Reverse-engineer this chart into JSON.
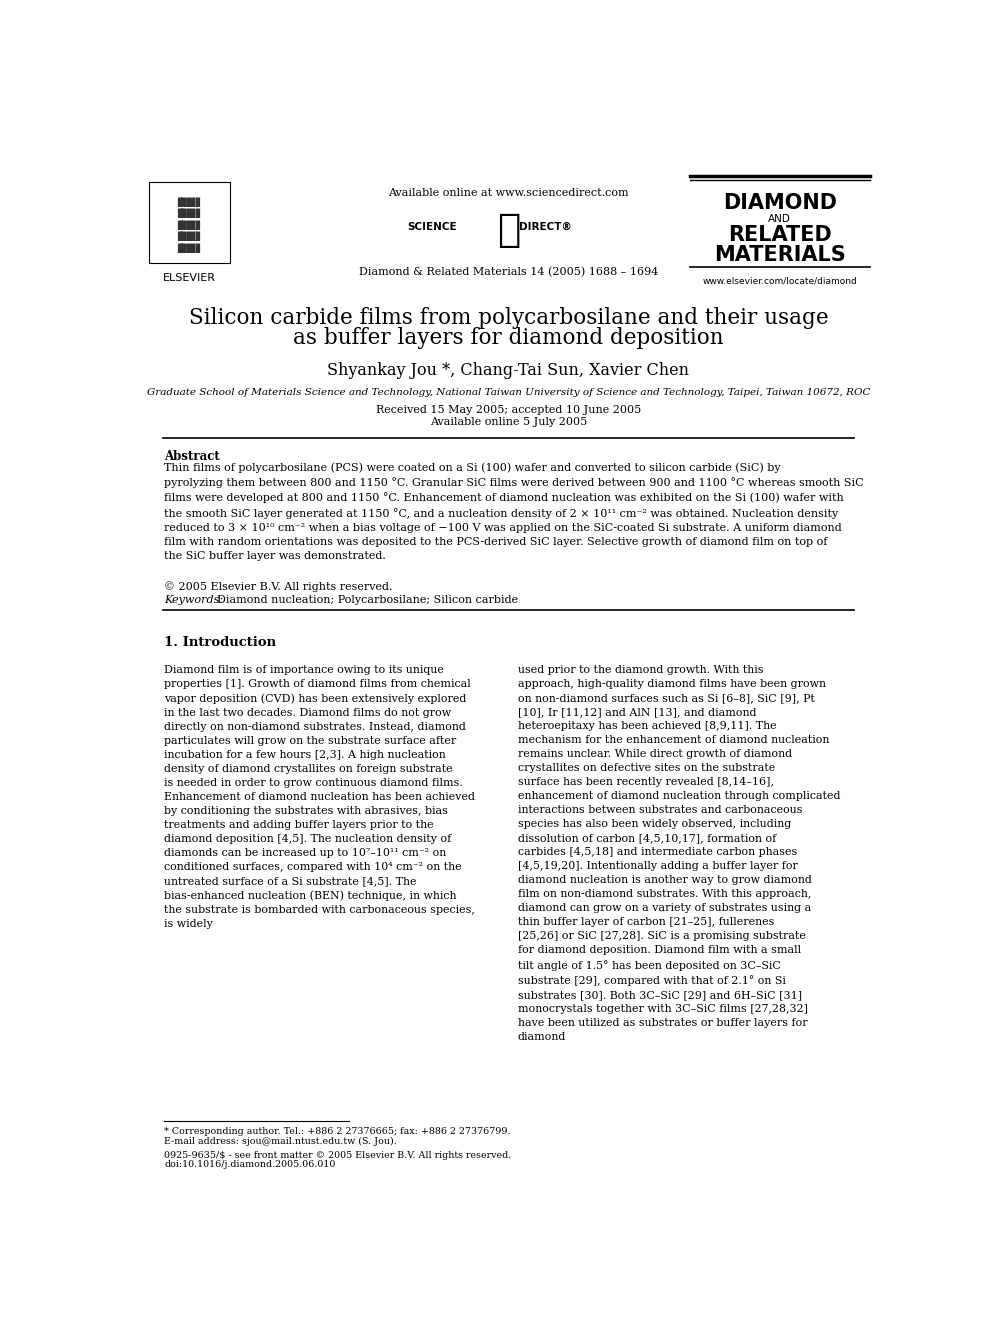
{
  "bg_color": "#ffffff",
  "title_line1": "Silicon carbide films from polycarbosilane and their usage",
  "title_line2": "as buffer layers for diamond deposition",
  "authors": "Shyankay Jou *, Chang-Tai Sun, Xavier Chen",
  "affiliation": "Graduate School of Materials Science and Technology, National Taiwan University of Science and Technology, Taipei, Taiwan 10672, ROC",
  "received": "Received 15 May 2005; accepted 10 June 2005",
  "available": "Available online 5 July 2005",
  "journal_header": "Diamond & Related Materials 14 (2005) 1688 – 1694",
  "available_online": "Available online at www.sciencedirect.com",
  "journal_name_line1": "DIAMOND",
  "journal_name_and": "AND",
  "journal_name_line2": "RELATED",
  "journal_name_line3": "MATERIALS",
  "journal_website": "www.elsevier.com/locate/diamond",
  "abstract_heading": "Abstract",
  "abstract_text": "Thin films of polycarbosilane (PCS) were coated on a Si (100) wafer and converted to silicon carbide (SiC) by pyrolyzing them between 800 and 1150 °C. Granular SiC films were derived between 900 and 1100 °C whereas smooth SiC films were developed at 800 and 1150 °C. Enhancement of diamond nucleation was exhibited on the Si (100) wafer with the smooth SiC layer generated at 1150 °C, and a nucleation density of 2 × 10¹¹ cm⁻² was obtained. Nucleation density reduced to 3 × 10¹⁰ cm⁻² when a bias voltage of −100 V was applied on the SiC-coated Si substrate. A uniform diamond film with random orientations was deposited to the PCS-derived SiC layer. Selective growth of diamond film on top of the SiC buffer layer was demonstrated.",
  "copyright": "© 2005 Elsevier B.V. All rights reserved.",
  "keywords_label": "Keywords:",
  "keywords": "Diamond nucleation; Polycarbosilane; Silicon carbide",
  "section1_heading": "1. Introduction",
  "col1_text": "Diamond film is of importance owing to its unique properties [1]. Growth of diamond films from chemical vapor deposition (CVD) has been extensively explored in the last two decades. Diamond films do not grow directly on non-diamond substrates. Instead, diamond particulates will grow on the substrate surface after incubation for a few hours [2,3]. A high nucleation density of diamond crystallites on foreign substrate is needed in order to grow continuous diamond films. Enhancement of diamond nucleation has been achieved by conditioning the substrates with abrasives, bias treatments and adding buffer layers prior to the diamond deposition [4,5]. The nucleation density of diamonds can be increased up to 10⁷–10¹¹ cm⁻² on conditioned surfaces, compared with 10⁴ cm⁻² on the untreated surface of a Si substrate [4,5]. The bias-enhanced nucleation (BEN) technique, in which the substrate is bombarded with carbonaceous species, is widely",
  "col2_text": "used prior to the diamond growth. With this approach, high-quality diamond films have been grown on non-diamond surfaces such as Si [6–8], SiC [9], Pt [10], Ir [11,12] and AlN [13], and diamond heteroepitaxy has been achieved [8,9,11]. The mechanism for the enhancement of diamond nucleation remains unclear. While direct growth of diamond crystallites on defective sites on the substrate surface has been recently revealed [8,14–16], enhancement of diamond nucleation through complicated interactions between substrates and carbonaceous species has also been widely observed, including dissolution of carbon [4,5,10,17], formation of carbides [4,5,18] and intermediate carbon phases [4,5,19,20]. Intentionally adding a buffer layer for diamond nucleation is another way to grow diamond film on non-diamond substrates. With this approach, diamond can grow on a variety of substrates using a thin buffer layer of carbon [21–25], fullerenes [25,26] or SiC [27,28].",
  "col2_text2": "SiC is a promising substrate for diamond deposition. Diamond film with a small tilt angle of 1.5° has been deposited on 3C–SiC substrate [29], compared with that of 2.1° on Si substrates [30]. Both 3C–SiC [29] and 6H–SiC [31] monocrystals together with 3C–SiC films [27,28,32] have been utilized as substrates or buffer layers for diamond",
  "footnote1": "* Corresponding author. Tel.: +886 2 27376665; fax: +886 2 27376799.",
  "footnote2": "E-mail address: sjou@mail.ntust.edu.tw (S. Jou).",
  "footnote3": "0925-9635/$ - see front matter © 2005 Elsevier B.V. All rights reserved.",
  "footnote4": "doi:10.1016/j.diamond.2005.06.010"
}
